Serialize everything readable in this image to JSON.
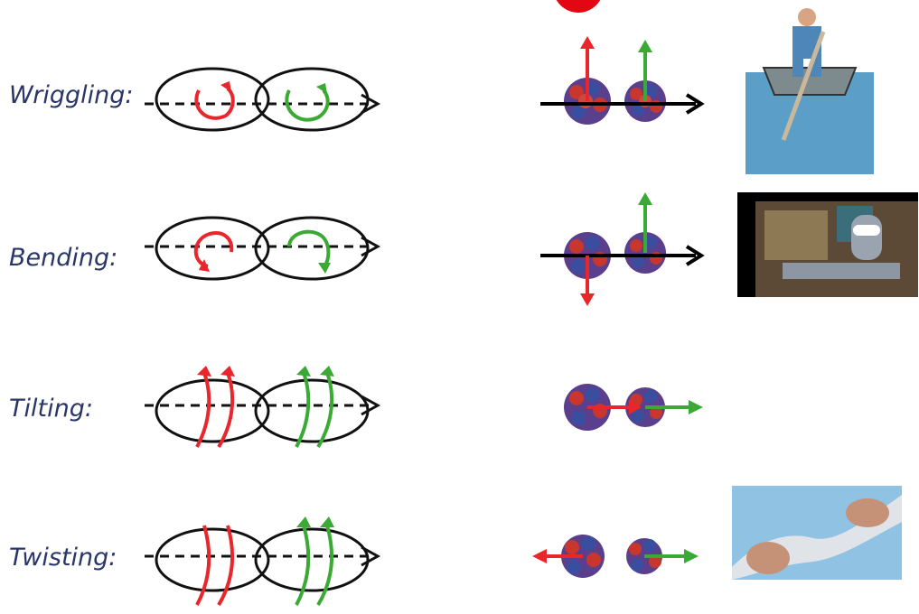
{
  "modes": [
    {
      "label": "Wriggling:"
    },
    {
      "label": "Bending:"
    },
    {
      "label": "Tilting:"
    },
    {
      "label": "Twisting:"
    }
  ],
  "colors": {
    "red": "#e8262b",
    "green": "#3aaa35",
    "text": "#2a3568",
    "ellipse": "#111111"
  },
  "icons": {
    "photo_1": "man-rowing-boat",
    "photo_2": "robot-bending-girder",
    "photo_4": "hands-wringing-towel"
  }
}
